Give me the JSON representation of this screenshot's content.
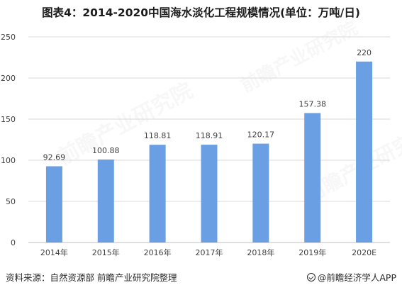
{
  "title": "图表4：2014-2020中国海水淡化工程规模情况(单位：万吨/日)",
  "source": "资料来源：自然资源部 前瞻产业研究院整理",
  "brand": "@前瞻经济学人APP",
  "watermark_text": "前瞻产业研究院",
  "colors": {
    "bar": "#6a9fe3",
    "grid": "#d9d9d9",
    "axis": "#bfbfbf",
    "label": "#404040"
  },
  "chart_data": {
    "type": "bar",
    "categories": [
      "2014年",
      "2015年",
      "2016年",
      "2017年",
      "2018年",
      "2019年",
      "2020E"
    ],
    "values": [
      92.69,
      100.88,
      118.81,
      118.91,
      120.17,
      157.38,
      220
    ],
    "value_labels": [
      "92.69",
      "100.88",
      "118.81",
      "118.91",
      "120.17",
      "157.38",
      "220"
    ],
    "ylim": [
      0,
      250
    ],
    "yticks": [
      0,
      50,
      100,
      150,
      200,
      250
    ],
    "grid": true,
    "title": "图表4：2014-2020中国海水淡化工程规模情况(单位：万吨/日)"
  }
}
